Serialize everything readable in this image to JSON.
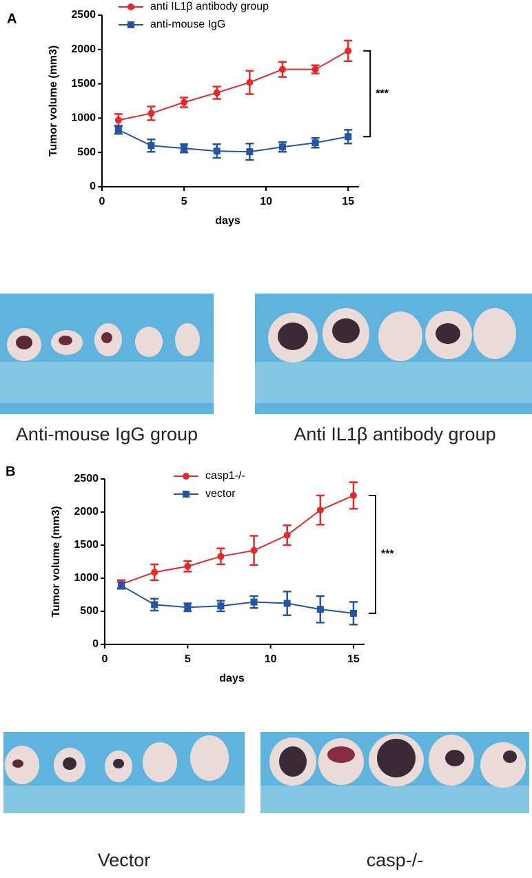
{
  "chart_data": [
    {
      "type": "line",
      "panel": "A",
      "xlabel": "days",
      "ylabel": "Tumor volume (mm3)",
      "x": [
        1,
        3,
        5,
        7,
        9,
        11,
        13,
        15
      ],
      "series": [
        {
          "name": "anti IL1β antibody group",
          "color": "#e8272a",
          "marker": "circle",
          "values": [
            970,
            1070,
            1230,
            1370,
            1520,
            1710,
            1710,
            1980
          ],
          "errors": [
            90,
            100,
            70,
            90,
            170,
            110,
            60,
            150
          ]
        },
        {
          "name": "anti-mouse IgG",
          "color": "#2455a4",
          "marker": "square",
          "values": [
            830,
            600,
            560,
            520,
            510,
            580,
            640,
            730
          ],
          "errors": [
            60,
            90,
            60,
            100,
            120,
            70,
            70,
            100
          ]
        }
      ],
      "xlim": [
        0,
        16
      ],
      "ylim": [
        0,
        2500
      ],
      "xticks": [
        0,
        5,
        10,
        15
      ],
      "yticks": [
        0,
        500,
        1000,
        1500,
        2000,
        2500
      ],
      "annotation": "***"
    },
    {
      "type": "line",
      "panel": "B",
      "xlabel": "days",
      "ylabel": "Tumor volume (mm3)",
      "x": [
        1,
        3,
        5,
        7,
        9,
        11,
        13,
        15
      ],
      "series": [
        {
          "name": "casp1-/-",
          "color": "#e8272a",
          "marker": "circle",
          "values": [
            910,
            1090,
            1180,
            1330,
            1420,
            1650,
            2030,
            2250
          ],
          "errors": [
            60,
            120,
            80,
            120,
            220,
            150,
            220,
            200
          ]
        },
        {
          "name": "vector",
          "color": "#2455a4",
          "marker": "square",
          "values": [
            890,
            600,
            560,
            580,
            640,
            620,
            530,
            470
          ],
          "errors": [
            50,
            90,
            60,
            80,
            90,
            180,
            200,
            170
          ]
        }
      ],
      "xlim": [
        0,
        16
      ],
      "ylim": [
        0,
        2500
      ],
      "xticks": [
        0,
        5,
        10,
        15
      ],
      "yticks": [
        0,
        500,
        1000,
        1500,
        2000,
        2500
      ],
      "annotation": "***"
    }
  ],
  "photo_captions": [
    "Anti-mouse IgG group",
    "Anti IL1β antibody group",
    "Vector",
    "casp-/-"
  ]
}
